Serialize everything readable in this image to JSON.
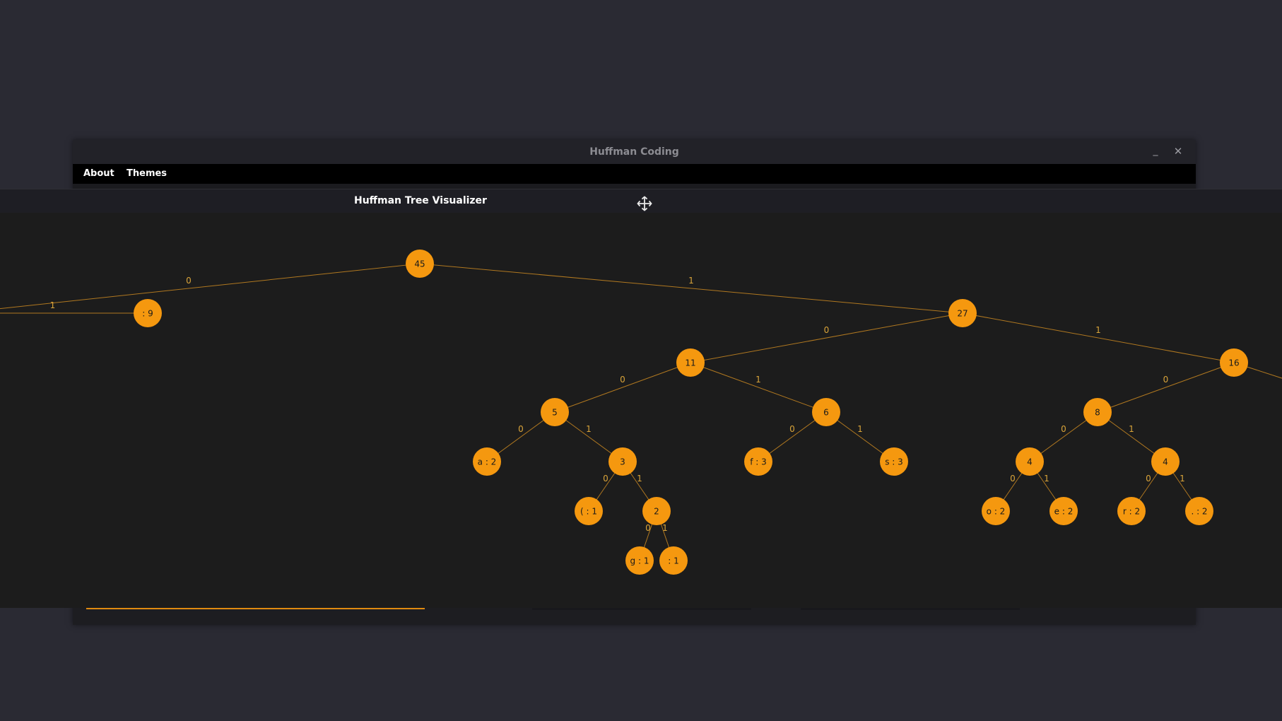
{
  "window": {
    "title": "Huffman Coding",
    "minimize_label": "_",
    "close_label": "✕"
  },
  "menu": {
    "items": [
      {
        "label": "About"
      },
      {
        "label": "Themes"
      }
    ]
  },
  "visualizer": {
    "title": "Huffman Tree Visualizer",
    "move_icon": "move-icon"
  },
  "colors": {
    "accent": "#f5980f",
    "edge": "#b07820",
    "edge_label": "#d9a43a",
    "node_text": "#1a1a1a"
  },
  "tree": {
    "nodes": [
      {
        "id": "n45",
        "label": "45"
      },
      {
        "id": "nleft",
        "label": ""
      },
      {
        "id": "nsp9",
        "label": ": 9"
      },
      {
        "id": "n27",
        "label": "27"
      },
      {
        "id": "n11",
        "label": "11"
      },
      {
        "id": "n16",
        "label": "16"
      },
      {
        "id": "n5",
        "label": "5"
      },
      {
        "id": "n6",
        "label": "6"
      },
      {
        "id": "n8",
        "label": "8"
      },
      {
        "id": "na2",
        "label": "a : 2"
      },
      {
        "id": "n3",
        "label": "3"
      },
      {
        "id": "nf3",
        "label": "f : 3"
      },
      {
        "id": "ns3",
        "label": "s : 3"
      },
      {
        "id": "n4a",
        "label": "4"
      },
      {
        "id": "n4b",
        "label": "4"
      },
      {
        "id": "nparen1",
        "label": "( : 1"
      },
      {
        "id": "n2",
        "label": "2"
      },
      {
        "id": "no2",
        "label": "o : 2"
      },
      {
        "id": "ne2",
        "label": "e : 2"
      },
      {
        "id": "nr2",
        "label": "r : 2"
      },
      {
        "id": "ndot2",
        "label": ". : 2"
      },
      {
        "id": "ng1",
        "label": "g : 1"
      },
      {
        "id": "ncolon1",
        "label": ": 1"
      }
    ],
    "edges": [
      {
        "from": "n45",
        "to": "nleft",
        "label": "0"
      },
      {
        "from": "n45",
        "to": "n27",
        "label": "1"
      },
      {
        "from": "nleft",
        "to": "nsp9",
        "label": "1"
      },
      {
        "from": "n27",
        "to": "n11",
        "label": "0"
      },
      {
        "from": "n27",
        "to": "n16",
        "label": "1"
      },
      {
        "from": "n11",
        "to": "n5",
        "label": "0"
      },
      {
        "from": "n11",
        "to": "n6",
        "label": "1"
      },
      {
        "from": "n16",
        "to": "n8",
        "label": "0"
      },
      {
        "from": "n16",
        "to": "nright",
        "label": ""
      },
      {
        "from": "n5",
        "to": "na2",
        "label": "0"
      },
      {
        "from": "n5",
        "to": "n3",
        "label": "1"
      },
      {
        "from": "n6",
        "to": "nf3",
        "label": "0"
      },
      {
        "from": "n6",
        "to": "ns3",
        "label": "1"
      },
      {
        "from": "n8",
        "to": "n4a",
        "label": "0"
      },
      {
        "from": "n8",
        "to": "n4b",
        "label": "1"
      },
      {
        "from": "n3",
        "to": "nparen1",
        "label": "0"
      },
      {
        "from": "n3",
        "to": "n2",
        "label": "1"
      },
      {
        "from": "n4a",
        "to": "no2",
        "label": "0"
      },
      {
        "from": "n4a",
        "to": "ne2",
        "label": "1"
      },
      {
        "from": "n4b",
        "to": "nr2",
        "label": "0"
      },
      {
        "from": "n4b",
        "to": "ndot2",
        "label": "1"
      },
      {
        "from": "n2",
        "to": "ng1",
        "label": "0"
      },
      {
        "from": "n2",
        "to": "ncolon1",
        "label": "1"
      }
    ]
  }
}
